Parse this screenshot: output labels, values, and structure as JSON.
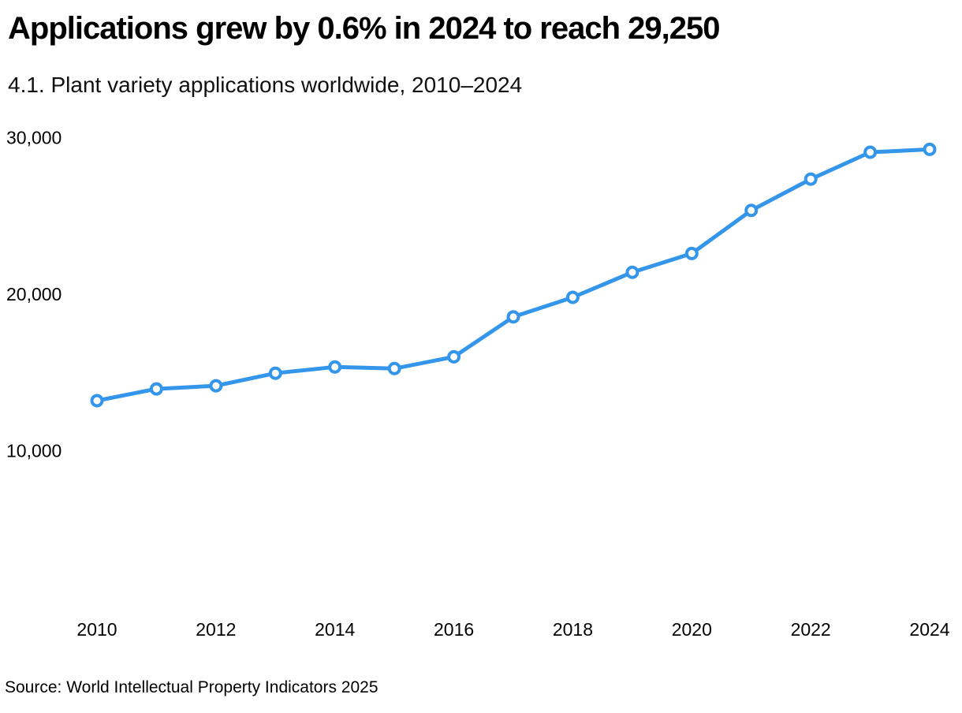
{
  "title": "Applications grew by 0.6% in 2024 to reach 29,250",
  "subtitle": "4.1. Plant variety applications worldwide, 2010–2024",
  "source": "Source: World Intellectual Property Indicators 2025",
  "colors": {
    "line": "#3496EA",
    "marker_fill": "#ffffff",
    "text": "#000000",
    "background": "#ffffff"
  },
  "chart_data": {
    "type": "line",
    "title": "Applications grew by 0.6% in 2024 to reach 29,250",
    "subtitle": "4.1. Plant variety applications worldwide, 2010–2024",
    "x": [
      2010,
      2011,
      2012,
      2013,
      2014,
      2015,
      2016,
      2017,
      2018,
      2019,
      2020,
      2021,
      2022,
      2023,
      2024
    ],
    "values": [
      13200,
      13950,
      14150,
      14950,
      15350,
      15250,
      16000,
      18550,
      19800,
      21400,
      22600,
      25350,
      27350,
      29070,
      29250
    ],
    "series_name": "Plant variety applications worldwide",
    "xlabel": "",
    "ylabel": "",
    "xlim": [
      2010,
      2024
    ],
    "ylim": [
      0,
      31500
    ],
    "x_ticks": [
      2010,
      2012,
      2014,
      2016,
      2018,
      2020,
      2022,
      2024
    ],
    "x_tick_labels": [
      "2010",
      "2012",
      "2014",
      "2016",
      "2018",
      "2020",
      "2022",
      "2024"
    ],
    "y_ticks": [
      {
        "value": 10000,
        "label": "10,000"
      },
      {
        "value": 20000,
        "label": "20,000"
      },
      {
        "value": 30000,
        "label": "30,000"
      }
    ],
    "grid": false,
    "legend": false,
    "marker_style": "open-circle"
  }
}
